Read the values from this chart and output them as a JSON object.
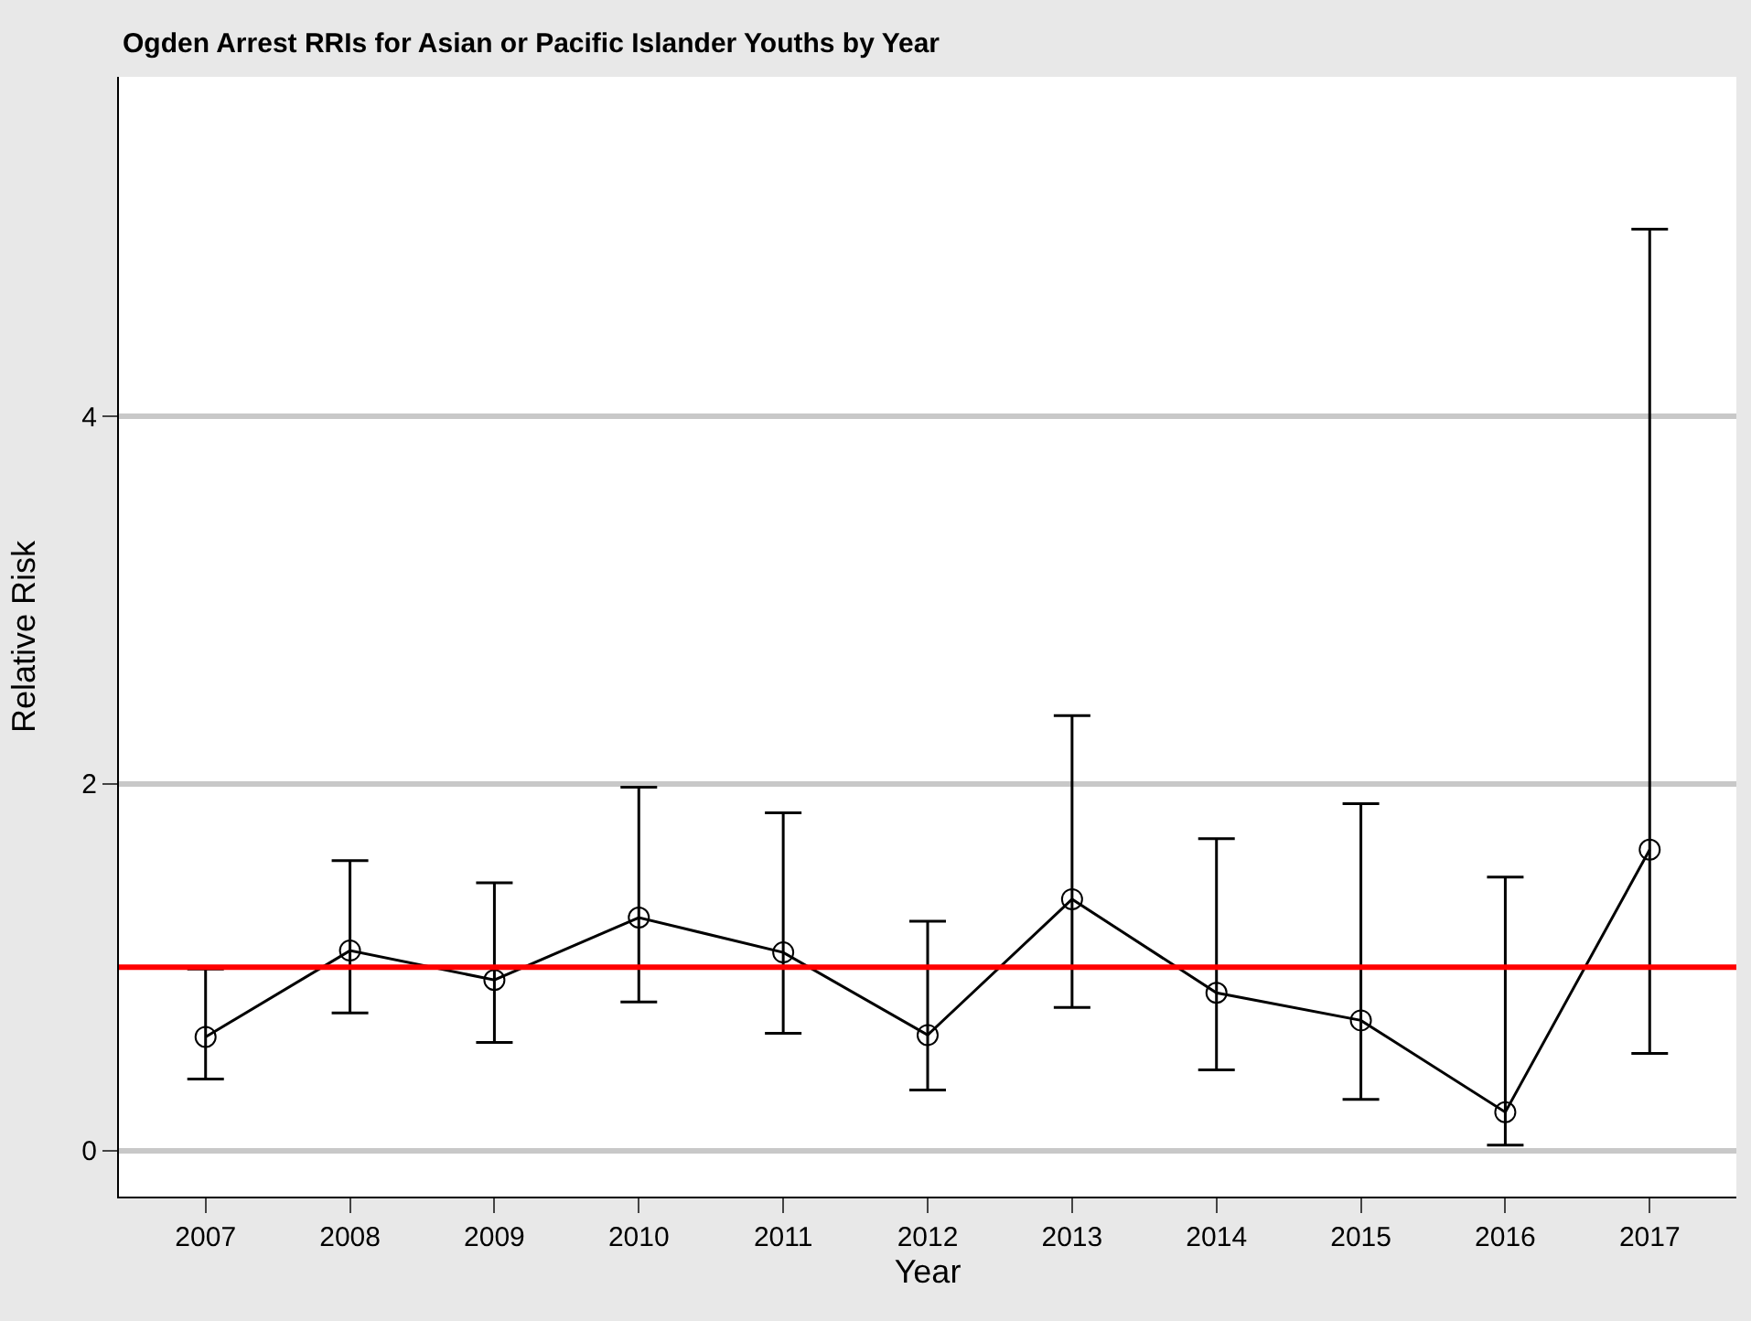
{
  "chart_data": {
    "type": "line",
    "title": "Ogden Arrest RRIs for Asian or Pacific Islander Youths by Year",
    "xlabel": "Year",
    "ylabel": "Relative Risk",
    "categories": [
      "2007",
      "2008",
      "2009",
      "2010",
      "2011",
      "2012",
      "2013",
      "2014",
      "2015",
      "2016",
      "2017"
    ],
    "series": [
      {
        "color": "#000000",
        "values": [
          0.62,
          1.09,
          0.93,
          1.27,
          1.08,
          0.63,
          1.37,
          0.86,
          0.71,
          0.21,
          1.64
        ],
        "errors": [
          [
            0.39,
            0.99
          ],
          [
            0.75,
            1.58
          ],
          [
            0.59,
            1.46
          ],
          [
            0.81,
            1.98
          ],
          [
            0.64,
            1.84
          ],
          [
            0.33,
            1.25
          ],
          [
            0.78,
            2.37
          ],
          [
            0.44,
            1.7
          ],
          [
            0.28,
            1.89
          ],
          [
            0.03,
            1.49
          ],
          [
            0.53,
            5.02
          ]
        ]
      }
    ],
    "ylim": [
      -0.25,
      5.85
    ],
    "yticks": [
      0,
      2,
      4
    ],
    "grid": "y",
    "marker": "circle",
    "line_style": "solid",
    "ref_lines": [
      {
        "axis": "y",
        "value": 1,
        "color": "#ff0000"
      }
    ]
  }
}
